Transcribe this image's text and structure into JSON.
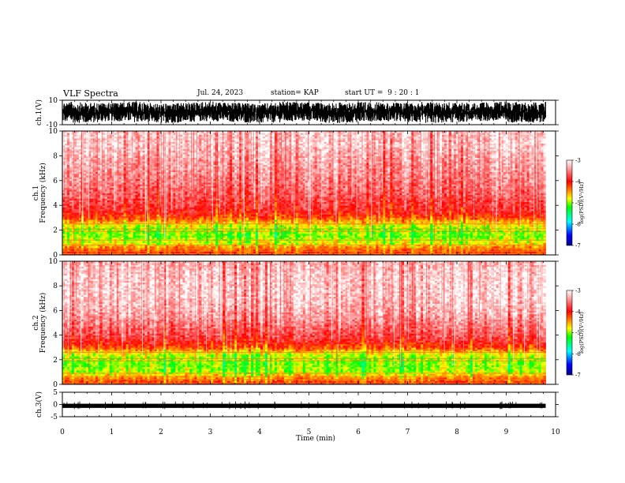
{
  "header": {
    "title": "VLF Spectra",
    "date": "Jul. 24, 2023",
    "station": "station= KAP",
    "start": "start UT =  9 : 20 : 1"
  },
  "colors": {
    "background": "#ffffff",
    "axes": "#000000",
    "spectrogram_colormap": [
      "#ffffff",
      "#ff0000",
      "#ffff00",
      "#00ff00",
      "#00ffff",
      "#0000ff",
      "#00008b"
    ]
  },
  "chart_data": [
    {
      "type": "line",
      "name": "ch1-waveform",
      "ylabel": "ch.1(V)",
      "ylim": [
        -10,
        10
      ],
      "y_ticks": [
        "10",
        "-10"
      ],
      "xlim": [
        0,
        10
      ],
      "x": [
        0,
        0.5,
        1,
        1.5,
        2,
        2.5,
        3,
        3.5,
        4,
        4.5,
        5,
        5.5,
        6,
        6.5,
        7,
        7.5,
        8,
        8.5,
        9,
        9.5,
        9.8
      ],
      "envelope_upper": [
        9,
        8,
        8,
        9,
        7,
        8,
        9,
        8,
        7,
        9,
        8,
        8,
        9,
        8,
        8,
        9,
        8,
        8,
        9,
        8,
        9
      ],
      "envelope_lower": [
        -8,
        -9,
        -7,
        -8,
        -9,
        -8,
        -7,
        -8,
        -9,
        -8,
        -7,
        -9,
        -8,
        -7,
        -8,
        -9,
        -8,
        -7,
        -8,
        -9,
        -8
      ]
    },
    {
      "type": "heatmap",
      "name": "ch1-spectrogram",
      "ylabel": "ch.1\nFrequency (kHz)",
      "ylim": [
        0,
        10
      ],
      "y_ticks": [
        "0",
        "2",
        "4",
        "6",
        "8",
        "10"
      ],
      "xlim": [
        0,
        10
      ],
      "data_extent_min": 9.8,
      "colorbar": {
        "label": "log(PSD)(V²/Hz)",
        "range": [
          -7,
          -3
        ],
        "ticks": [
          "-3",
          "-4",
          "-5",
          "-6",
          "-7"
        ]
      },
      "level_profile_khz": [
        0,
        0.5,
        1,
        1.5,
        2,
        2.5,
        3,
        3.5,
        4,
        5,
        6,
        7,
        8,
        9,
        10
      ],
      "level_profile_log_psd": [
        -4.0,
        -4.3,
        -4.8,
        -5.0,
        -5.0,
        -4.7,
        -4.2,
        -3.9,
        -3.8,
        -3.6,
        -3.5,
        -3.4,
        -3.3,
        -3.2,
        -3.2
      ],
      "horizontal_lines_khz": [
        0.1,
        0.3,
        0.5,
        0.8,
        1.2,
        1.9,
        2.1,
        2.5
      ]
    },
    {
      "type": "heatmap",
      "name": "ch2-spectrogram",
      "ylabel": "ch.2\nFrequency (kHz)",
      "ylim": [
        0,
        10
      ],
      "y_ticks": [
        "0",
        "2",
        "4",
        "6",
        "8",
        "10"
      ],
      "xlim": [
        0,
        10
      ],
      "data_extent_min": 9.8,
      "colorbar": {
        "label": "log(PSD)(V²/Hz)",
        "range": [
          -7,
          -3
        ],
        "ticks": [
          "-3",
          "-4",
          "-5",
          "-6",
          "-7"
        ]
      },
      "level_profile_khz": [
        0,
        0.5,
        1,
        1.5,
        2,
        2.5,
        3,
        3.5,
        4,
        5,
        6,
        7,
        8,
        9,
        10
      ],
      "level_profile_log_psd": [
        -4.0,
        -4.4,
        -4.9,
        -5.0,
        -5.0,
        -4.8,
        -4.2,
        -3.9,
        -3.7,
        -3.5,
        -3.3,
        -3.2,
        -3.2,
        -3.2,
        -3.3
      ],
      "horizontal_lines_khz": [
        0.1,
        0.4,
        0.6,
        0.9,
        1.9,
        2.1,
        2.6
      ]
    },
    {
      "type": "line",
      "name": "ch3-waveform",
      "ylabel": "ch.3(V)",
      "ylim": [
        -5,
        5
      ],
      "y_ticks": [
        "5",
        "0",
        "-5"
      ],
      "xlim": [
        0,
        10
      ],
      "x": [
        0,
        9.8
      ],
      "envelope_upper": [
        0.3,
        0.3
      ],
      "envelope_lower": [
        -1.4,
        -1.4
      ]
    }
  ],
  "x_axis": {
    "label": "Time (min)",
    "ticks": [
      "0",
      "1",
      "2",
      "3",
      "4",
      "5",
      "6",
      "7",
      "8",
      "9",
      "10"
    ]
  }
}
